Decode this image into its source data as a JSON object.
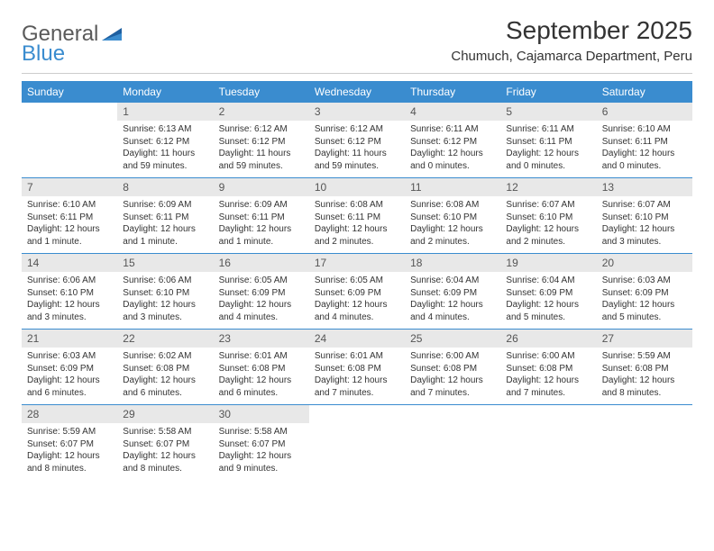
{
  "brand": {
    "part1": "General",
    "part2": "Blue"
  },
  "title": "September 2025",
  "location": "Chumuch, Cajamarca Department, Peru",
  "colors": {
    "accent": "#3a8ccf",
    "daynum_bg": "#e8e8e8",
    "text": "#333333",
    "logo_gray": "#5a5a5a"
  },
  "weekdays": [
    "Sunday",
    "Monday",
    "Tuesday",
    "Wednesday",
    "Thursday",
    "Friday",
    "Saturday"
  ],
  "weeks": [
    [
      {
        "empty": true
      },
      {
        "day": "1",
        "sunrise": "Sunrise: 6:13 AM",
        "sunset": "Sunset: 6:12 PM",
        "daylight": "Daylight: 11 hours and 59 minutes."
      },
      {
        "day": "2",
        "sunrise": "Sunrise: 6:12 AM",
        "sunset": "Sunset: 6:12 PM",
        "daylight": "Daylight: 11 hours and 59 minutes."
      },
      {
        "day": "3",
        "sunrise": "Sunrise: 6:12 AM",
        "sunset": "Sunset: 6:12 PM",
        "daylight": "Daylight: 11 hours and 59 minutes."
      },
      {
        "day": "4",
        "sunrise": "Sunrise: 6:11 AM",
        "sunset": "Sunset: 6:12 PM",
        "daylight": "Daylight: 12 hours and 0 minutes."
      },
      {
        "day": "5",
        "sunrise": "Sunrise: 6:11 AM",
        "sunset": "Sunset: 6:11 PM",
        "daylight": "Daylight: 12 hours and 0 minutes."
      },
      {
        "day": "6",
        "sunrise": "Sunrise: 6:10 AM",
        "sunset": "Sunset: 6:11 PM",
        "daylight": "Daylight: 12 hours and 0 minutes."
      }
    ],
    [
      {
        "day": "7",
        "sunrise": "Sunrise: 6:10 AM",
        "sunset": "Sunset: 6:11 PM",
        "daylight": "Daylight: 12 hours and 1 minute."
      },
      {
        "day": "8",
        "sunrise": "Sunrise: 6:09 AM",
        "sunset": "Sunset: 6:11 PM",
        "daylight": "Daylight: 12 hours and 1 minute."
      },
      {
        "day": "9",
        "sunrise": "Sunrise: 6:09 AM",
        "sunset": "Sunset: 6:11 PM",
        "daylight": "Daylight: 12 hours and 1 minute."
      },
      {
        "day": "10",
        "sunrise": "Sunrise: 6:08 AM",
        "sunset": "Sunset: 6:11 PM",
        "daylight": "Daylight: 12 hours and 2 minutes."
      },
      {
        "day": "11",
        "sunrise": "Sunrise: 6:08 AM",
        "sunset": "Sunset: 6:10 PM",
        "daylight": "Daylight: 12 hours and 2 minutes."
      },
      {
        "day": "12",
        "sunrise": "Sunrise: 6:07 AM",
        "sunset": "Sunset: 6:10 PM",
        "daylight": "Daylight: 12 hours and 2 minutes."
      },
      {
        "day": "13",
        "sunrise": "Sunrise: 6:07 AM",
        "sunset": "Sunset: 6:10 PM",
        "daylight": "Daylight: 12 hours and 3 minutes."
      }
    ],
    [
      {
        "day": "14",
        "sunrise": "Sunrise: 6:06 AM",
        "sunset": "Sunset: 6:10 PM",
        "daylight": "Daylight: 12 hours and 3 minutes."
      },
      {
        "day": "15",
        "sunrise": "Sunrise: 6:06 AM",
        "sunset": "Sunset: 6:10 PM",
        "daylight": "Daylight: 12 hours and 3 minutes."
      },
      {
        "day": "16",
        "sunrise": "Sunrise: 6:05 AM",
        "sunset": "Sunset: 6:09 PM",
        "daylight": "Daylight: 12 hours and 4 minutes."
      },
      {
        "day": "17",
        "sunrise": "Sunrise: 6:05 AM",
        "sunset": "Sunset: 6:09 PM",
        "daylight": "Daylight: 12 hours and 4 minutes."
      },
      {
        "day": "18",
        "sunrise": "Sunrise: 6:04 AM",
        "sunset": "Sunset: 6:09 PM",
        "daylight": "Daylight: 12 hours and 4 minutes."
      },
      {
        "day": "19",
        "sunrise": "Sunrise: 6:04 AM",
        "sunset": "Sunset: 6:09 PM",
        "daylight": "Daylight: 12 hours and 5 minutes."
      },
      {
        "day": "20",
        "sunrise": "Sunrise: 6:03 AM",
        "sunset": "Sunset: 6:09 PM",
        "daylight": "Daylight: 12 hours and 5 minutes."
      }
    ],
    [
      {
        "day": "21",
        "sunrise": "Sunrise: 6:03 AM",
        "sunset": "Sunset: 6:09 PM",
        "daylight": "Daylight: 12 hours and 6 minutes."
      },
      {
        "day": "22",
        "sunrise": "Sunrise: 6:02 AM",
        "sunset": "Sunset: 6:08 PM",
        "daylight": "Daylight: 12 hours and 6 minutes."
      },
      {
        "day": "23",
        "sunrise": "Sunrise: 6:01 AM",
        "sunset": "Sunset: 6:08 PM",
        "daylight": "Daylight: 12 hours and 6 minutes."
      },
      {
        "day": "24",
        "sunrise": "Sunrise: 6:01 AM",
        "sunset": "Sunset: 6:08 PM",
        "daylight": "Daylight: 12 hours and 7 minutes."
      },
      {
        "day": "25",
        "sunrise": "Sunrise: 6:00 AM",
        "sunset": "Sunset: 6:08 PM",
        "daylight": "Daylight: 12 hours and 7 minutes."
      },
      {
        "day": "26",
        "sunrise": "Sunrise: 6:00 AM",
        "sunset": "Sunset: 6:08 PM",
        "daylight": "Daylight: 12 hours and 7 minutes."
      },
      {
        "day": "27",
        "sunrise": "Sunrise: 5:59 AM",
        "sunset": "Sunset: 6:08 PM",
        "daylight": "Daylight: 12 hours and 8 minutes."
      }
    ],
    [
      {
        "day": "28",
        "sunrise": "Sunrise: 5:59 AM",
        "sunset": "Sunset: 6:07 PM",
        "daylight": "Daylight: 12 hours and 8 minutes."
      },
      {
        "day": "29",
        "sunrise": "Sunrise: 5:58 AM",
        "sunset": "Sunset: 6:07 PM",
        "daylight": "Daylight: 12 hours and 8 minutes."
      },
      {
        "day": "30",
        "sunrise": "Sunrise: 5:58 AM",
        "sunset": "Sunset: 6:07 PM",
        "daylight": "Daylight: 12 hours and 9 minutes."
      },
      {
        "empty": true
      },
      {
        "empty": true
      },
      {
        "empty": true
      },
      {
        "empty": true
      }
    ]
  ]
}
